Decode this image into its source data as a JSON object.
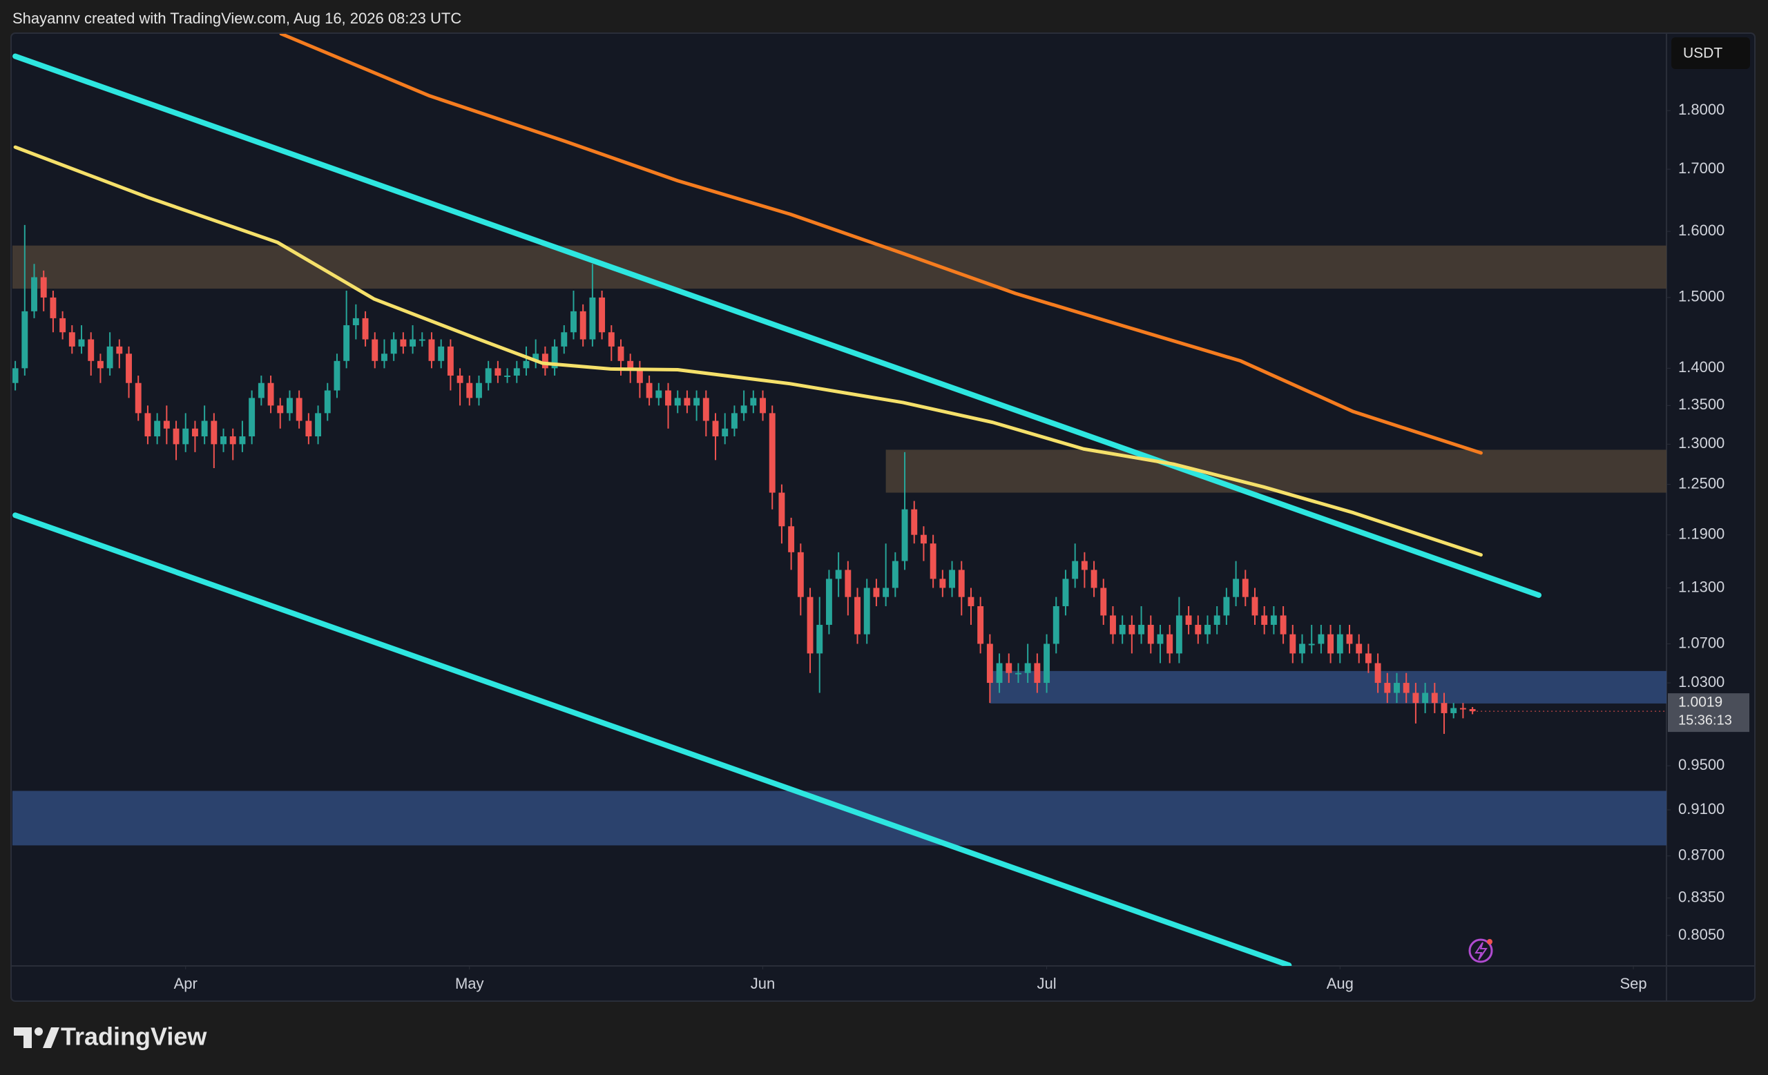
{
  "header": {
    "credit": "Shayannv created with TradingView.com, Aug 16, 2026 08:23 UTC",
    "currency": "USDT",
    "countdown": "15:36:13",
    "logo": "TradingView"
  },
  "chart_data": {
    "type": "candlestick",
    "log_scale": true,
    "grid": false,
    "up_color": "#26a69a",
    "down_color": "#ef5350",
    "xlim": [
      -0.3,
      174.5
    ],
    "xticks": [
      {
        "value": 18,
        "label": "Apr"
      },
      {
        "value": 48,
        "label": "May"
      },
      {
        "value": 79,
        "label": "Jun"
      },
      {
        "value": 109,
        "label": "Jul"
      },
      {
        "value": 140,
        "label": "Aug"
      },
      {
        "value": 171,
        "label": "Sep"
      }
    ],
    "ylim": [
      0.7815,
      1.94
    ],
    "yticks": [
      {
        "value": 0.805,
        "label": "0.8050"
      },
      {
        "value": 0.835,
        "label": "0.8350"
      },
      {
        "value": 0.87,
        "label": "0.8700"
      },
      {
        "value": 0.91,
        "label": "0.9100"
      },
      {
        "value": 0.95,
        "label": "0.9500"
      },
      {
        "value": 1.03,
        "label": "1.0300"
      },
      {
        "value": 1.07,
        "label": "1.0700"
      },
      {
        "value": 1.13,
        "label": "1.1300"
      },
      {
        "value": 1.19,
        "label": "1.1900"
      },
      {
        "value": 1.25,
        "label": "1.2500"
      },
      {
        "value": 1.3,
        "label": "1.3000"
      },
      {
        "value": 1.35,
        "label": "1.3500"
      },
      {
        "value": 1.4,
        "label": "1.4000"
      },
      {
        "value": 1.5,
        "label": "1.5000"
      },
      {
        "value": 1.6,
        "label": "1.6000"
      },
      {
        "value": 1.7,
        "label": "1.7000"
      },
      {
        "value": 1.8,
        "label": "1.8000"
      }
    ],
    "zones": [
      {
        "color": "#4a4035",
        "x": [
          -0.3,
          174.5
        ],
        "y": [
          1.513,
          1.578
        ]
      },
      {
        "color": "#4a4035",
        "x": [
          92,
          174.5
        ],
        "y": [
          1.24,
          1.293
        ]
      },
      {
        "color": "#2f4a7a",
        "x": [
          103,
          174.5
        ],
        "y": [
          1.0095,
          1.042
        ]
      },
      {
        "color": "#2f4a7a",
        "x": [
          -0.3,
          174.5
        ],
        "y": [
          0.879,
          0.927
        ]
      }
    ],
    "lines": [
      {
        "color": "#2ee6e0",
        "x": [
          0,
          161
        ],
        "values": [
          1.898,
          1.122
        ]
      },
      {
        "color": "#2ee6e0",
        "x": [
          0,
          134.6
        ],
        "values": [
          1.213,
          0.782
        ]
      },
      {
        "color": "#f5e06a",
        "x": [
          0,
          14,
          27.7,
          37.9,
          48.6,
          55.7,
          62.9,
          70,
          81.9,
          93.8,
          103.3,
          112.9,
          122.4,
          131.9,
          141.4,
          154.9
        ],
        "values": [
          1.737,
          1.654,
          1.583,
          1.498,
          1.442,
          1.407,
          1.399,
          1.398,
          1.379,
          1.354,
          1.328,
          1.294,
          1.275,
          1.247,
          1.216,
          1.167
        ]
      },
      {
        "color": "#f57c1f",
        "x": [
          28.1,
          43.8,
          58.1,
          70,
          81.9,
          93.8,
          105.7,
          117.6,
          129.5,
          141.4,
          154.9
        ],
        "values": [
          1.94,
          1.826,
          1.747,
          1.681,
          1.627,
          1.566,
          1.506,
          1.457,
          1.41,
          1.342,
          1.289
        ]
      }
    ],
    "ohlc": [
      [
        1.38,
        1.41,
        1.37,
        1.4
      ],
      [
        1.4,
        1.61,
        1.39,
        1.48
      ],
      [
        1.48,
        1.55,
        1.47,
        1.53
      ],
      [
        1.53,
        1.54,
        1.48,
        1.5
      ],
      [
        1.5,
        1.51,
        1.45,
        1.47
      ],
      [
        1.47,
        1.48,
        1.44,
        1.45
      ],
      [
        1.45,
        1.46,
        1.42,
        1.43
      ],
      [
        1.43,
        1.46,
        1.42,
        1.44
      ],
      [
        1.44,
        1.45,
        1.39,
        1.41
      ],
      [
        1.41,
        1.42,
        1.38,
        1.4
      ],
      [
        1.4,
        1.45,
        1.39,
        1.43
      ],
      [
        1.43,
        1.44,
        1.4,
        1.42
      ],
      [
        1.42,
        1.43,
        1.36,
        1.38
      ],
      [
        1.38,
        1.39,
        1.33,
        1.34
      ],
      [
        1.34,
        1.35,
        1.3,
        1.31
      ],
      [
        1.31,
        1.34,
        1.3,
        1.33
      ],
      [
        1.33,
        1.35,
        1.3,
        1.32
      ],
      [
        1.32,
        1.33,
        1.28,
        1.3
      ],
      [
        1.3,
        1.34,
        1.29,
        1.32
      ],
      [
        1.32,
        1.33,
        1.29,
        1.31
      ],
      [
        1.31,
        1.35,
        1.3,
        1.33
      ],
      [
        1.33,
        1.34,
        1.27,
        1.3
      ],
      [
        1.3,
        1.32,
        1.29,
        1.31
      ],
      [
        1.31,
        1.32,
        1.28,
        1.3
      ],
      [
        1.3,
        1.33,
        1.29,
        1.31
      ],
      [
        1.31,
        1.37,
        1.3,
        1.36
      ],
      [
        1.36,
        1.39,
        1.35,
        1.38
      ],
      [
        1.38,
        1.39,
        1.34,
        1.35
      ],
      [
        1.35,
        1.36,
        1.32,
        1.34
      ],
      [
        1.34,
        1.37,
        1.33,
        1.36
      ],
      [
        1.36,
        1.37,
        1.32,
        1.33
      ],
      [
        1.33,
        1.34,
        1.3,
        1.31
      ],
      [
        1.31,
        1.35,
        1.3,
        1.34
      ],
      [
        1.34,
        1.38,
        1.33,
        1.37
      ],
      [
        1.37,
        1.42,
        1.36,
        1.41
      ],
      [
        1.41,
        1.51,
        1.4,
        1.46
      ],
      [
        1.46,
        1.49,
        1.44,
        1.47
      ],
      [
        1.47,
        1.48,
        1.43,
        1.44
      ],
      [
        1.44,
        1.45,
        1.4,
        1.41
      ],
      [
        1.41,
        1.44,
        1.4,
        1.42
      ],
      [
        1.42,
        1.45,
        1.41,
        1.44
      ],
      [
        1.44,
        1.45,
        1.42,
        1.43
      ],
      [
        1.43,
        1.46,
        1.42,
        1.44
      ],
      [
        1.44,
        1.45,
        1.43,
        1.44
      ],
      [
        1.44,
        1.45,
        1.4,
        1.41
      ],
      [
        1.41,
        1.44,
        1.4,
        1.43
      ],
      [
        1.43,
        1.44,
        1.37,
        1.39
      ],
      [
        1.39,
        1.4,
        1.35,
        1.38
      ],
      [
        1.38,
        1.39,
        1.35,
        1.36
      ],
      [
        1.36,
        1.39,
        1.35,
        1.38
      ],
      [
        1.38,
        1.41,
        1.37,
        1.4
      ],
      [
        1.4,
        1.41,
        1.38,
        1.39
      ],
      [
        1.39,
        1.4,
        1.38,
        1.39
      ],
      [
        1.39,
        1.41,
        1.38,
        1.4
      ],
      [
        1.4,
        1.43,
        1.39,
        1.41
      ],
      [
        1.41,
        1.44,
        1.4,
        1.42
      ],
      [
        1.42,
        1.43,
        1.39,
        1.4
      ],
      [
        1.4,
        1.44,
        1.39,
        1.43
      ],
      [
        1.43,
        1.46,
        1.42,
        1.45
      ],
      [
        1.45,
        1.51,
        1.44,
        1.48
      ],
      [
        1.48,
        1.49,
        1.43,
        1.44
      ],
      [
        1.44,
        1.55,
        1.43,
        1.5
      ],
      [
        1.5,
        1.51,
        1.44,
        1.45
      ],
      [
        1.45,
        1.46,
        1.41,
        1.43
      ],
      [
        1.43,
        1.44,
        1.39,
        1.41
      ],
      [
        1.41,
        1.42,
        1.38,
        1.4
      ],
      [
        1.4,
        1.41,
        1.36,
        1.38
      ],
      [
        1.38,
        1.39,
        1.35,
        1.36
      ],
      [
        1.36,
        1.38,
        1.35,
        1.37
      ],
      [
        1.37,
        1.38,
        1.32,
        1.35
      ],
      [
        1.35,
        1.37,
        1.34,
        1.36
      ],
      [
        1.36,
        1.37,
        1.34,
        1.35
      ],
      [
        1.35,
        1.37,
        1.33,
        1.36
      ],
      [
        1.36,
        1.37,
        1.31,
        1.33
      ],
      [
        1.33,
        1.34,
        1.28,
        1.31
      ],
      [
        1.31,
        1.34,
        1.3,
        1.32
      ],
      [
        1.32,
        1.35,
        1.31,
        1.34
      ],
      [
        1.34,
        1.37,
        1.33,
        1.35
      ],
      [
        1.35,
        1.37,
        1.34,
        1.36
      ],
      [
        1.36,
        1.37,
        1.33,
        1.34
      ],
      [
        1.34,
        1.35,
        1.22,
        1.24
      ],
      [
        1.24,
        1.25,
        1.18,
        1.2
      ],
      [
        1.2,
        1.21,
        1.15,
        1.17
      ],
      [
        1.17,
        1.18,
        1.1,
        1.12
      ],
      [
        1.12,
        1.13,
        1.04,
        1.06
      ],
      [
        1.06,
        1.12,
        1.02,
        1.09
      ],
      [
        1.09,
        1.15,
        1.08,
        1.14
      ],
      [
        1.14,
        1.17,
        1.12,
        1.15
      ],
      [
        1.15,
        1.16,
        1.1,
        1.12
      ],
      [
        1.12,
        1.13,
        1.07,
        1.08
      ],
      [
        1.08,
        1.14,
        1.07,
        1.13
      ],
      [
        1.13,
        1.14,
        1.11,
        1.12
      ],
      [
        1.12,
        1.18,
        1.11,
        1.13
      ],
      [
        1.13,
        1.17,
        1.12,
        1.16
      ],
      [
        1.16,
        1.29,
        1.15,
        1.22
      ],
      [
        1.22,
        1.23,
        1.18,
        1.19
      ],
      [
        1.19,
        1.2,
        1.16,
        1.18
      ],
      [
        1.18,
        1.19,
        1.13,
        1.14
      ],
      [
        1.14,
        1.15,
        1.12,
        1.13
      ],
      [
        1.13,
        1.16,
        1.12,
        1.15
      ],
      [
        1.15,
        1.16,
        1.1,
        1.12
      ],
      [
        1.12,
        1.13,
        1.09,
        1.11
      ],
      [
        1.11,
        1.12,
        1.06,
        1.07
      ],
      [
        1.07,
        1.08,
        1.01,
        1.03
      ],
      [
        1.03,
        1.06,
        1.02,
        1.05
      ],
      [
        1.05,
        1.06,
        1.03,
        1.04
      ],
      [
        1.04,
        1.05,
        1.03,
        1.04
      ],
      [
        1.04,
        1.07,
        1.03,
        1.05
      ],
      [
        1.05,
        1.06,
        1.02,
        1.03
      ],
      [
        1.03,
        1.08,
        1.02,
        1.07
      ],
      [
        1.07,
        1.12,
        1.06,
        1.11
      ],
      [
        1.11,
        1.15,
        1.1,
        1.14
      ],
      [
        1.14,
        1.18,
        1.13,
        1.16
      ],
      [
        1.16,
        1.17,
        1.13,
        1.15
      ],
      [
        1.15,
        1.16,
        1.12,
        1.13
      ],
      [
        1.13,
        1.14,
        1.09,
        1.1
      ],
      [
        1.1,
        1.11,
        1.07,
        1.08
      ],
      [
        1.08,
        1.1,
        1.07,
        1.09
      ],
      [
        1.09,
        1.1,
        1.06,
        1.08
      ],
      [
        1.08,
        1.11,
        1.07,
        1.09
      ],
      [
        1.09,
        1.1,
        1.06,
        1.07
      ],
      [
        1.07,
        1.09,
        1.05,
        1.08
      ],
      [
        1.08,
        1.09,
        1.05,
        1.06
      ],
      [
        1.06,
        1.12,
        1.05,
        1.1
      ],
      [
        1.1,
        1.11,
        1.08,
        1.09
      ],
      [
        1.09,
        1.1,
        1.07,
        1.08
      ],
      [
        1.08,
        1.1,
        1.07,
        1.09
      ],
      [
        1.09,
        1.11,
        1.08,
        1.1
      ],
      [
        1.1,
        1.13,
        1.09,
        1.12
      ],
      [
        1.12,
        1.16,
        1.11,
        1.14
      ],
      [
        1.14,
        1.15,
        1.11,
        1.12
      ],
      [
        1.12,
        1.13,
        1.09,
        1.1
      ],
      [
        1.1,
        1.11,
        1.08,
        1.09
      ],
      [
        1.09,
        1.11,
        1.08,
        1.1
      ],
      [
        1.1,
        1.11,
        1.07,
        1.08
      ],
      [
        1.08,
        1.09,
        1.05,
        1.06
      ],
      [
        1.06,
        1.08,
        1.05,
        1.07
      ],
      [
        1.07,
        1.09,
        1.06,
        1.07
      ],
      [
        1.07,
        1.09,
        1.06,
        1.08
      ],
      [
        1.08,
        1.09,
        1.05,
        1.06
      ],
      [
        1.06,
        1.09,
        1.05,
        1.08
      ],
      [
        1.08,
        1.09,
        1.06,
        1.07
      ],
      [
        1.07,
        1.08,
        1.05,
        1.06
      ],
      [
        1.06,
        1.07,
        1.04,
        1.05
      ],
      [
        1.05,
        1.06,
        1.02,
        1.03
      ],
      [
        1.03,
        1.04,
        1.01,
        1.02
      ],
      [
        1.02,
        1.04,
        1.01,
        1.03
      ],
      [
        1.03,
        1.04,
        1.01,
        1.02
      ],
      [
        1.02,
        1.03,
        0.99,
        1.01
      ],
      [
        1.01,
        1.03,
        1.0,
        1.02
      ],
      [
        1.02,
        1.03,
        1.0,
        1.01
      ],
      [
        1.01,
        1.02,
        0.98,
        1.0
      ],
      [
        1.0,
        1.01,
        0.995,
        1.005
      ],
      [
        1.005,
        1.01,
        0.995,
        1.004
      ],
      [
        1.004,
        1.006,
        0.999,
        1.0019
      ]
    ]
  }
}
